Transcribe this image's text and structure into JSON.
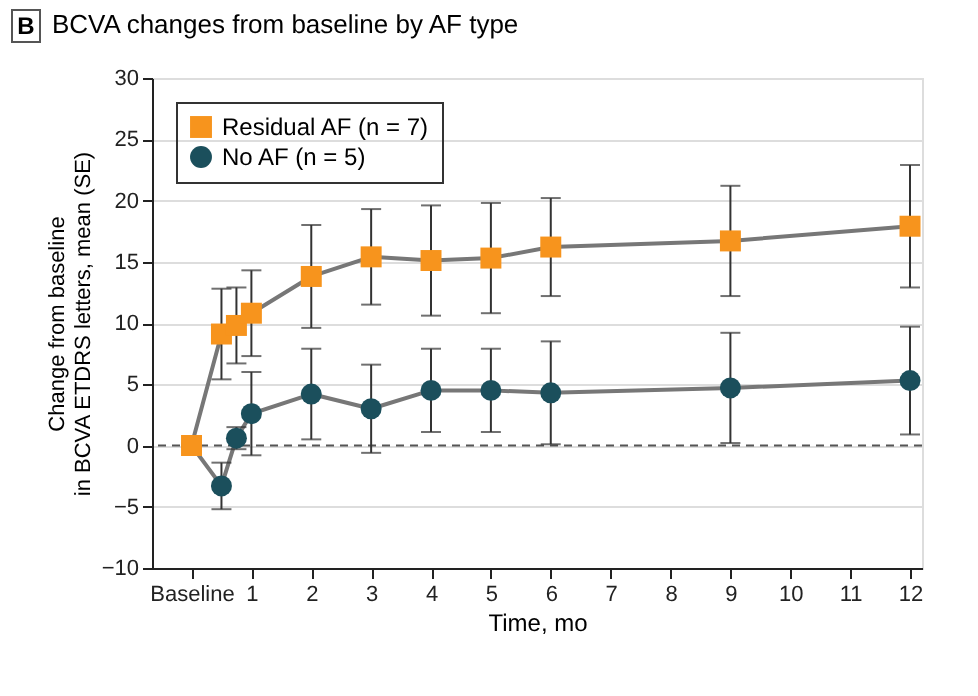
{
  "chart_data": {
    "type": "line",
    "title": "BCVA changes from baseline by AF type",
    "xlabel": "Time, mo",
    "ylabel": "Change from baseline\nin BCVA ETDRS letters, mean (SE)",
    "annotations": [
      "B"
    ],
    "x": [
      0,
      0.5,
      0.75,
      1,
      2,
      3,
      4,
      5,
      6,
      9,
      12
    ],
    "series": [
      {
        "name": "Residual AF (n = 7)",
        "color": "#f7941d",
        "marker": "square",
        "values": [
          0,
          9.1,
          9.8,
          10.8,
          13.8,
          15.4,
          15.1,
          15.3,
          16.2,
          16.7,
          17.9
        ],
        "errors": [
          null,
          3.7,
          3.1,
          3.5,
          4.2,
          3.9,
          4.5,
          4.5,
          4.0,
          4.5,
          5.0
        ]
      },
      {
        "name": "No AF (n = 5)",
        "color": "#1b4f5c",
        "marker": "circle",
        "values": [
          0,
          -3.3,
          0.6,
          2.6,
          4.2,
          3.0,
          4.5,
          4.5,
          4.3,
          4.7,
          5.3
        ],
        "errors": [
          null,
          1.9,
          0.9,
          3.4,
          3.7,
          3.6,
          3.4,
          3.4,
          4.2,
          4.5,
          4.4
        ]
      }
    ],
    "xlim": [
      -0.66,
      12.2
    ],
    "ylim": [
      -10,
      30
    ],
    "xticks": [
      {
        "value": 0,
        "label": "Baseline"
      },
      1,
      2,
      3,
      4,
      5,
      6,
      7,
      8,
      9,
      10,
      11,
      12
    ],
    "yticks": [
      -10,
      -5,
      0,
      5,
      10,
      15,
      20,
      25,
      30
    ],
    "grid": "y",
    "legend": "top left",
    "ref_lines": [
      {
        "axis": "y",
        "value": 0,
        "color": "#555555",
        "line_style": "dashed"
      }
    ]
  }
}
